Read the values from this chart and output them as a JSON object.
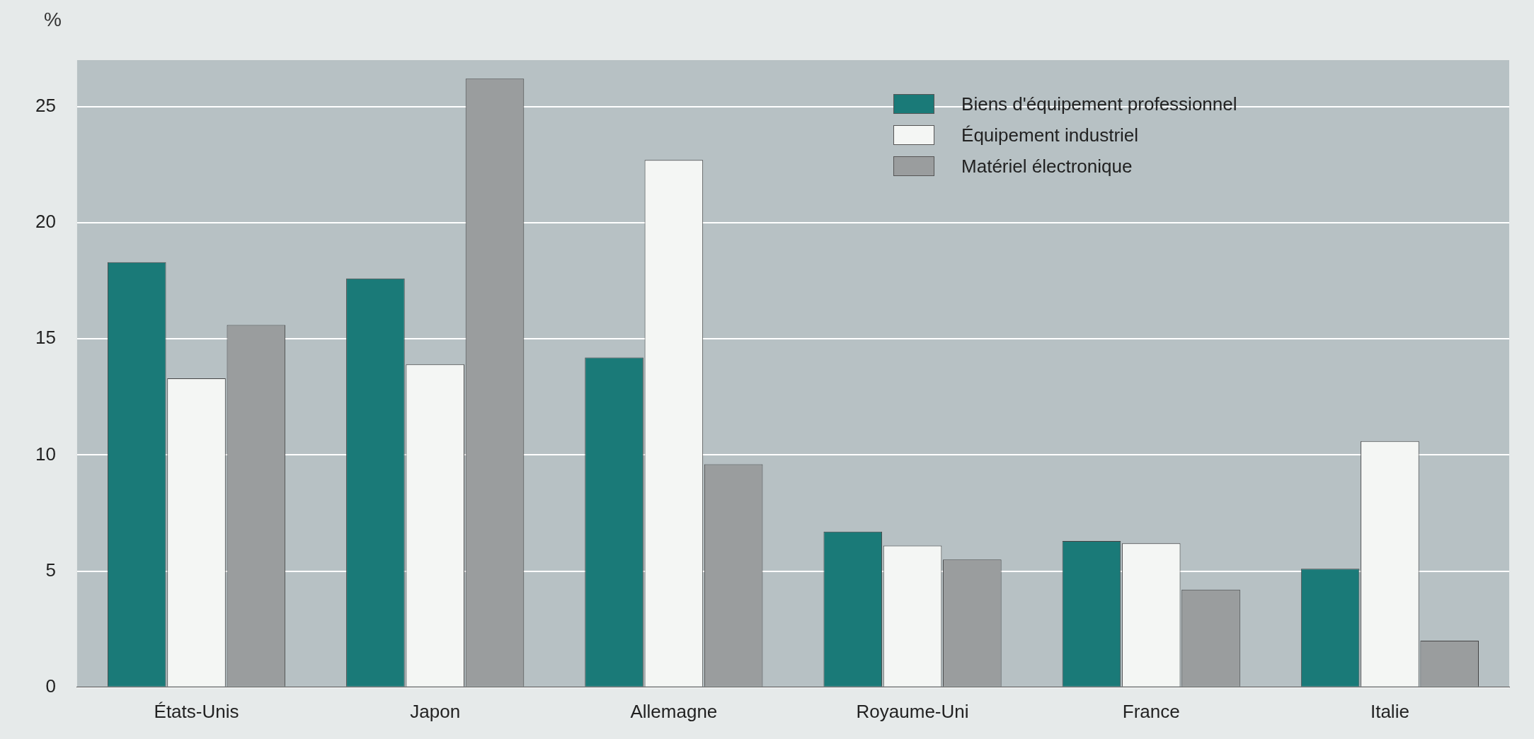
{
  "chart_data": {
    "type": "bar",
    "ylabel": "%",
    "categories": [
      "États-Unis",
      "Japon",
      "Allemagne",
      "Royaume-Uni",
      "France",
      "Italie"
    ],
    "series": [
      {
        "name": "Biens d'équipement professionnel",
        "color": "#1a7a78",
        "values": [
          18.3,
          17.6,
          14.2,
          6.7,
          6.3,
          5.1
        ]
      },
      {
        "name": "Équipement industriel",
        "color": "#f4f6f4",
        "values": [
          13.3,
          13.9,
          22.7,
          6.1,
          6.2,
          10.6
        ]
      },
      {
        "name": "Matériel électronique",
        "color": "#9a9d9e",
        "values": [
          15.6,
          26.2,
          9.6,
          5.5,
          4.2,
          2.0
        ]
      }
    ],
    "ylim": [
      0,
      27
    ],
    "yticks": [
      0,
      5,
      10,
      15,
      20,
      25
    ],
    "grid": "y",
    "legend": "top right"
  }
}
